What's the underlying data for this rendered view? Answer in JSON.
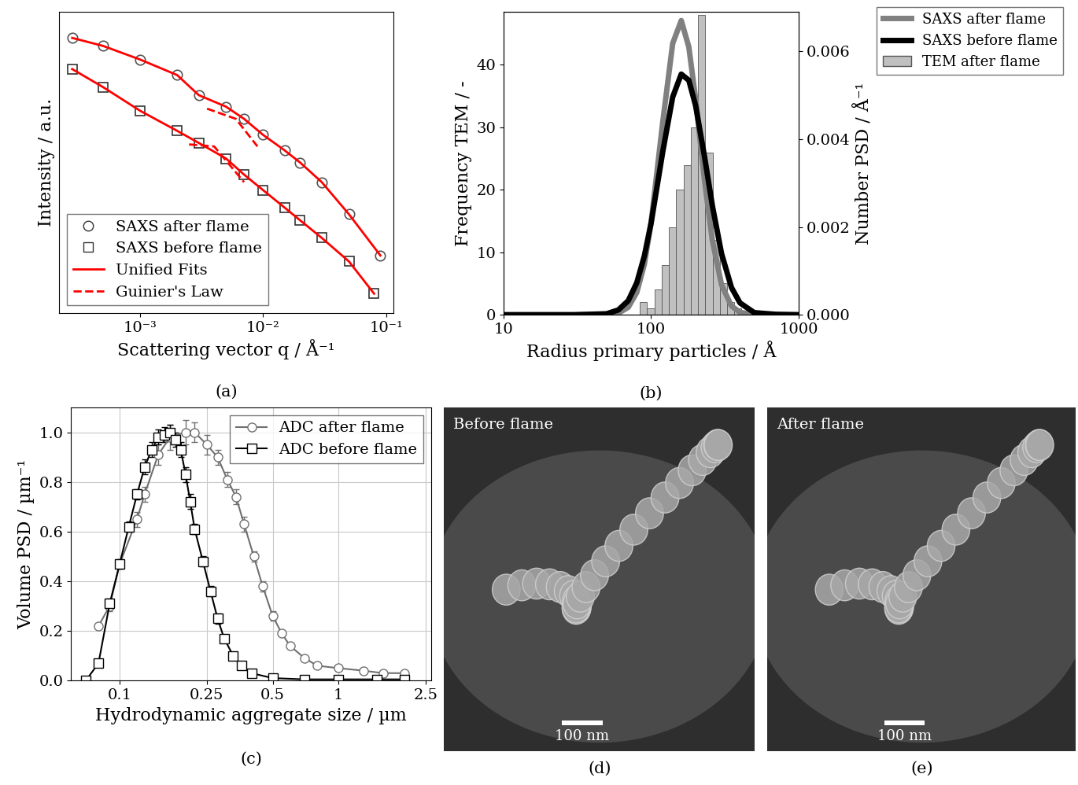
{
  "chart_data": [
    {
      "type": "line",
      "caption": "(a)",
      "x_label": "Scattering vector q / Å⁻¹",
      "y_label": "Intensity / a.u.",
      "log": true,
      "xlim": [
        0.00022,
        0.115
      ],
      "ylim": [
        1,
        1000000
      ],
      "xticks": [
        {
          "value": 0.001,
          "label": "10⁻³"
        },
        {
          "value": 0.01,
          "label": "10⁻²"
        },
        {
          "value": 0.1,
          "label": "10⁻¹"
        }
      ],
      "yticks": [],
      "tick_labels": "x",
      "legend": "lower left",
      "series": [
        {
          "name": "SAXS after flame",
          "type": "scatter",
          "marker": "circle",
          "color": "#555555",
          "x": [
            0.00028,
            0.0005,
            0.001,
            0.002,
            0.003,
            0.005,
            0.007,
            0.01,
            0.015,
            0.02,
            0.03,
            0.05,
            0.09
          ],
          "values": [
            302000,
            209000,
            112000,
            55000,
            21900,
            12900,
            7400,
            3550,
            1740,
            1000,
            407,
            93,
            14.1
          ]
        },
        {
          "name": "SAXS before flame",
          "type": "scatter",
          "marker": "square",
          "color": "#333333",
          "x": [
            0.00028,
            0.0005,
            0.001,
            0.002,
            0.003,
            0.005,
            0.007,
            0.01,
            0.015,
            0.02,
            0.03,
            0.05,
            0.08
          ],
          "values": [
            72400,
            31600,
            10700,
            4270,
            2450,
            1200,
            575,
            282,
            126,
            70.8,
            31.6,
            10.7,
            2.45
          ]
        },
        {
          "name": "Unified Fits",
          "type": "line",
          "line_style": "solid",
          "color": "#ff0000",
          "x": [
            0.00028,
            0.0005,
            0.001,
            0.002,
            0.003,
            0.005,
            0.007,
            0.01,
            0.015,
            0.02,
            0.03,
            0.05,
            0.09,
            null,
            0.00028,
            0.0005,
            0.001,
            0.002,
            0.003,
            0.005,
            0.007,
            0.01,
            0.015,
            0.02,
            0.03,
            0.05,
            0.08
          ],
          "values": [
            302000,
            209000,
            112000,
            55000,
            21900,
            12900,
            7400,
            3550,
            1740,
            1000,
            407,
            93,
            14.1,
            null,
            72400,
            31600,
            10700,
            4270,
            2450,
            1200,
            575,
            282,
            126,
            70.8,
            31.6,
            10.7,
            2.45
          ]
        },
        {
          "name": "Guinier's Law",
          "type": "line",
          "line_style": "dashed",
          "color": "#ff0000",
          "x": [
            0.0035,
            0.006,
            0.009,
            null,
            0.0025,
            0.004,
            0.007
          ],
          "values": [
            11800,
            7400,
            2090,
            null,
            2290,
            2090,
            407
          ]
        }
      ]
    },
    {
      "type": "histogram",
      "caption": "(b)",
      "x_label": "Radius primary particles / Å",
      "y_label": "Frequency TEM / -",
      "y2_label": "Number PSD / Å⁻¹",
      "log": "x",
      "xlim": [
        10,
        1000
      ],
      "xticks": [
        10,
        100,
        1000
      ],
      "ylim": [
        0,
        48.5
      ],
      "yticks": [
        0,
        10,
        20,
        30,
        40
      ],
      "y2lim": [
        0,
        0.0069
      ],
      "y2ticks": [
        {
          "value": 0,
          "label": "0.000"
        },
        {
          "value": 0.002,
          "label": "0.002"
        },
        {
          "value": 0.004,
          "label": "0.004"
        },
        {
          "value": 0.006,
          "label": "0.006"
        }
      ],
      "legend": "right",
      "series": [
        {
          "name": "SAXS after flame",
          "type": "line",
          "axis": "y2",
          "color": "#808080",
          "x": [
            10,
            30,
            50,
            60,
            70,
            80,
            90,
            100,
            120,
            140,
            160,
            180,
            200,
            230,
            260,
            300,
            350,
            400,
            500,
            700,
            1000
          ],
          "values": [
            0,
            0,
            4e-06,
            3.7e-05,
            0.00017,
            0.00051,
            0.00115,
            0.0021,
            0.0044,
            0.00618,
            0.0067,
            0.0061,
            0.00492,
            0.00306,
            0.00169,
            0.00068,
            0.0002,
            5.5e-05,
            4e-06,
            0,
            0
          ]
        },
        {
          "name": "SAXS before flame",
          "type": "line",
          "axis": "y2",
          "color": "#000000",
          "x": [
            10,
            30,
            50,
            60,
            70,
            80,
            90,
            100,
            120,
            140,
            160,
            180,
            200,
            230,
            260,
            300,
            350,
            400,
            500,
            700,
            1000
          ],
          "values": [
            0,
            0,
            2.3e-05,
            0.00011,
            0.00032,
            0.00073,
            0.00134,
            0.00209,
            0.00372,
            0.00496,
            0.00548,
            0.00534,
            0.00477,
            0.0036,
            0.00248,
            0.00139,
            0.00062,
            0.00027,
            4.8e-05,
            1e-05,
            0
          ]
        },
        {
          "name": "TEM after flame",
          "type": "bar",
          "color": "#c0c0c0",
          "bins": [
            84,
            94,
            106,
            118,
            132,
            148,
            166,
            186,
            208,
            233,
            261,
            292,
            327,
            366,
            409
          ],
          "values": [
            2,
            1,
            4,
            8,
            14,
            20,
            24,
            30,
            48,
            26,
            12,
            5,
            2,
            1
          ]
        }
      ]
    },
    {
      "type": "line",
      "caption": "(c)",
      "x_label": "Hydrodynamic aggregate size / µm",
      "y_label": "Volume PSD / µm⁻¹",
      "log": "x",
      "xlim": [
        0.06,
        2.65
      ],
      "xticks": [
        0.1,
        0.25,
        0.5,
        1,
        2.5
      ],
      "ylim": [
        0,
        1.1
      ],
      "yticks": [
        {
          "value": 0,
          "label": "0.0"
        },
        {
          "value": 0.2,
          "label": "0.2"
        },
        {
          "value": 0.4,
          "label": "0.4"
        },
        {
          "value": 0.6,
          "label": "0.6"
        },
        {
          "value": 0.8,
          "label": "0.8"
        },
        {
          "value": 1,
          "label": "1.0"
        }
      ],
      "grid": true,
      "legend": "upper right",
      "series": [
        {
          "name": "ADC after flame",
          "type": "line",
          "marker": "circle",
          "color": "#707070",
          "x": [
            0.08,
            0.09,
            0.1,
            0.12,
            0.13,
            0.15,
            0.17,
            0.2,
            0.22,
            0.25,
            0.28,
            0.31,
            0.34,
            0.37,
            0.41,
            0.45,
            0.5,
            0.55,
            0.6,
            0.7,
            0.8,
            1.0,
            1.3,
            1.6,
            2.0
          ],
          "values": [
            0.22,
            0.3,
            0.47,
            0.65,
            0.75,
            0.91,
            0.98,
            1.0,
            1.0,
            0.95,
            0.9,
            0.81,
            0.74,
            0.63,
            0.5,
            0.38,
            0.26,
            0.19,
            0.14,
            0.09,
            0.06,
            0.05,
            0.04,
            0.03,
            0.03
          ],
          "errors": [
            0.01,
            0.02,
            0.02,
            0.03,
            0.03,
            0.04,
            0.05,
            0.05,
            0.04,
            0.04,
            0.03,
            0.03,
            0.03,
            0.03,
            0.02,
            0.02,
            0.02,
            0.01,
            0.01,
            0.01,
            0.01,
            0.01,
            0.01,
            0.01,
            0.01
          ]
        },
        {
          "name": "ADC before flame",
          "type": "line",
          "marker": "square",
          "color": "#000000",
          "x": [
            0.07,
            0.08,
            0.09,
            0.1,
            0.11,
            0.12,
            0.13,
            0.14,
            0.15,
            0.16,
            0.17,
            0.18,
            0.19,
            0.2,
            0.21,
            0.22,
            0.24,
            0.26,
            0.28,
            0.3,
            0.33,
            0.36,
            0.4,
            0.5,
            0.7,
            1.0,
            1.5,
            2.0
          ],
          "values": [
            0.0,
            0.07,
            0.31,
            0.47,
            0.62,
            0.75,
            0.86,
            0.93,
            0.98,
            0.99,
            1.0,
            0.97,
            0.93,
            0.83,
            0.72,
            0.61,
            0.48,
            0.36,
            0.25,
            0.17,
            0.1,
            0.06,
            0.03,
            0.01,
            0.005,
            0.005,
            0.005,
            0.005
          ],
          "errors": [
            0,
            0.01,
            0.02,
            0.02,
            0.02,
            0.02,
            0.03,
            0.03,
            0.03,
            0.03,
            0.03,
            0.03,
            0.03,
            0.03,
            0.03,
            0.02,
            0.02,
            0.02,
            0.02,
            0.01,
            0.01,
            0.01,
            0.01,
            0.01,
            0.01,
            0.01,
            0.01,
            0.01
          ]
        }
      ]
    },
    {
      "type": "image",
      "caption": "(d)",
      "annotations": [
        "Before flame",
        "100 nm"
      ]
    },
    {
      "type": "image",
      "caption": "(e)",
      "annotations": [
        "After flame",
        "100 nm"
      ]
    }
  ]
}
